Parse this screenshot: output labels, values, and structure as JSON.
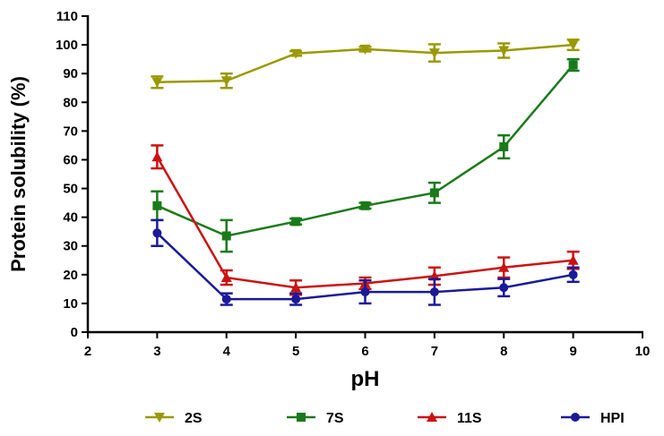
{
  "chart_data": {
    "type": "line",
    "xlabel": "pH",
    "ylabel": "Protein solubility (%)",
    "xlim": [
      2,
      10
    ],
    "ylim": [
      0,
      110
    ],
    "x_ticks": [
      "2",
      "3",
      "4",
      "5",
      "6",
      "7",
      "8",
      "9",
      "10"
    ],
    "y_ticks": [
      "0",
      "10",
      "20",
      "30",
      "40",
      "50",
      "60",
      "70",
      "80",
      "90",
      "100",
      "110"
    ],
    "x": [
      3,
      4,
      5,
      6,
      7,
      8,
      9
    ],
    "series": [
      {
        "name": "2S",
        "color": "#999900",
        "marker": "triangle-down",
        "values": [
          87,
          87.5,
          97,
          98.5,
          97.2,
          98,
          100
        ],
        "errors": [
          2,
          2.5,
          0.8,
          0.8,
          3,
          2.5,
          1.8
        ]
      },
      {
        "name": "7S",
        "color": "#1a7a1a",
        "marker": "square",
        "values": [
          44,
          33.5,
          38.5,
          44,
          48.5,
          64.5,
          93
        ],
        "errors": [
          5,
          5.5,
          1,
          1,
          3.5,
          4,
          2
        ]
      },
      {
        "name": "11S",
        "color": "#cc1111",
        "marker": "triangle-up",
        "values": [
          61,
          19,
          15.5,
          17,
          19.5,
          22.5,
          25
        ],
        "errors": [
          4,
          2.5,
          2.5,
          2,
          3,
          3.5,
          3
        ]
      },
      {
        "name": "HPI",
        "color": "#1a1a99",
        "marker": "circle",
        "values": [
          34.5,
          11.5,
          11.5,
          14,
          14,
          15.5,
          20
        ],
        "errors": [
          4.5,
          2,
          2,
          4,
          4.5,
          3,
          2.5
        ]
      }
    ]
  }
}
